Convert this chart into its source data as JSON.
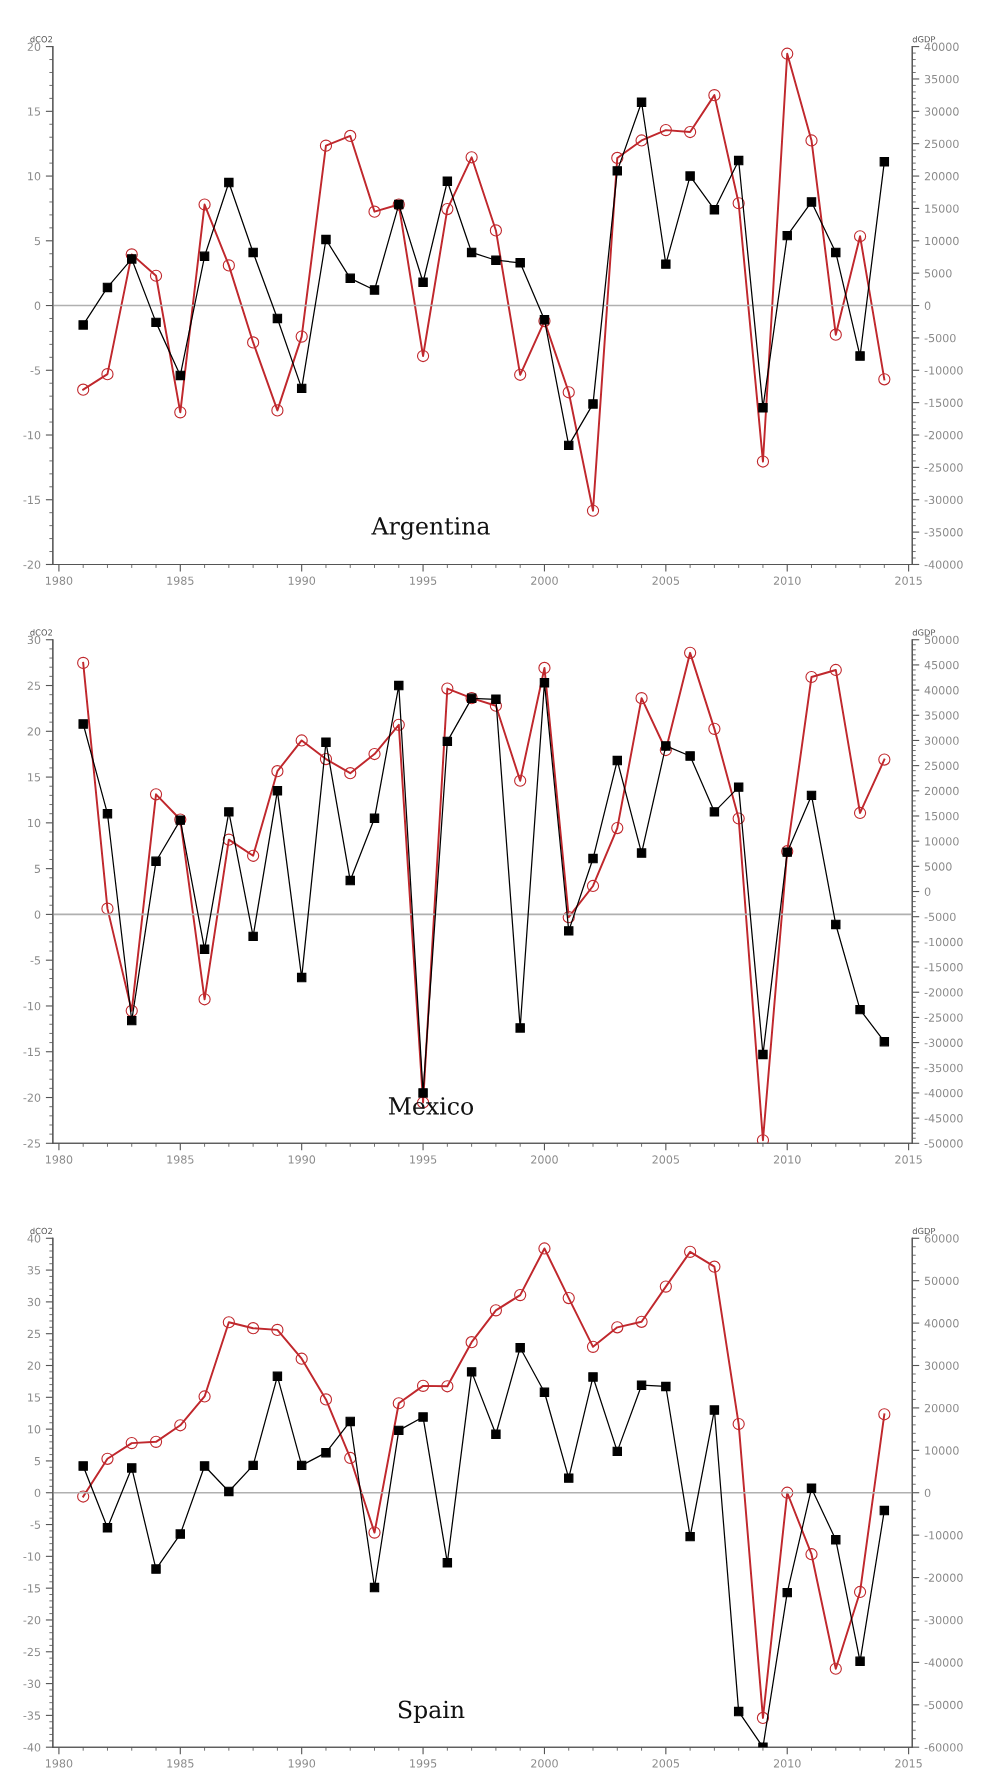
{
  "chart_data": [
    {
      "type": "line",
      "title": "Argentina",
      "ylabel": "dCO2",
      "y2label": "dGDP",
      "x": [
        1981,
        1982,
        1983,
        1984,
        1985,
        1986,
        1987,
        1988,
        1989,
        1990,
        1991,
        1992,
        1993,
        1994,
        1995,
        1996,
        1997,
        1998,
        1999,
        2000,
        2001,
        2002,
        2003,
        2004,
        2005,
        2006,
        2007,
        2008,
        2009,
        2010,
        2011,
        2012,
        2013,
        2014
      ],
      "series": [
        {
          "color": "#000000",
          "marker": "square",
          "values": [
            -1.5,
            1.4,
            3.6,
            -1.3,
            -5.4,
            3.8,
            9.5,
            4.1,
            -1.0,
            -6.4,
            5.1,
            2.1,
            1.2,
            7.8,
            1.8,
            9.6,
            4.1,
            3.5,
            3.3,
            -1.1,
            -10.8,
            -7.6,
            10.4,
            15.7,
            3.2,
            10.0,
            7.4,
            11.2,
            -7.9,
            5.4,
            8.0,
            4.1,
            -3.9,
            11.1
          ]
        },
        {
          "color": "#c0282d",
          "marker": "circle",
          "axis": "y2",
          "values": [
            -13000,
            -10600,
            7900,
            4600,
            -16500,
            15600,
            6200,
            -5700,
            -16200,
            -4800,
            24700,
            26200,
            14500,
            15600,
            -7800,
            14900,
            22900,
            11600,
            -10700,
            -2400,
            -13400,
            -31700,
            22800,
            25500,
            27100,
            26800,
            32500,
            15800,
            -24100,
            38900,
            25500,
            -4500,
            10700,
            -11400
          ]
        }
      ],
      "xlim": [
        1979.75,
        2015.15
      ],
      "xticks": [
        1980,
        1985,
        1990,
        1995,
        2000,
        2005,
        2010,
        2015
      ],
      "ylim": [
        -20,
        20
      ],
      "yticks": [
        -20,
        -15,
        -10,
        -5,
        0,
        5,
        10,
        15,
        20
      ],
      "y2lim": [
        -40000,
        40000
      ],
      "y2ticks": [
        -40000,
        -35000,
        -30000,
        -25000,
        -20000,
        -15000,
        -10000,
        -5000,
        0,
        5000,
        10000,
        15000,
        20000,
        25000,
        30000,
        35000,
        40000
      ],
      "ref_lines": [
        {
          "axis": "y",
          "value": 0,
          "color": "#b0b0b0"
        }
      ],
      "grid": false,
      "legend": false
    },
    {
      "type": "line",
      "title": "Mexico",
      "ylabel": "dCO2",
      "y2label": "dGDP",
      "x": [
        1981,
        1982,
        1983,
        1984,
        1985,
        1986,
        1987,
        1988,
        1989,
        1990,
        1991,
        1992,
        1993,
        1994,
        1995,
        1996,
        1997,
        1998,
        1999,
        2000,
        2001,
        2002,
        2003,
        2004,
        2005,
        2006,
        2007,
        2008,
        2009,
        2010,
        2011,
        2012,
        2013,
        2014
      ],
      "series": [
        {
          "color": "#000000",
          "marker": "square",
          "values": [
            20.8,
            11.0,
            -11.6,
            5.8,
            10.3,
            -3.8,
            11.2,
            -2.4,
            13.5,
            -6.9,
            18.8,
            3.7,
            10.5,
            25.0,
            -19.5,
            18.9,
            23.6,
            23.5,
            -12.4,
            25.3,
            -1.8,
            6.1,
            16.8,
            6.7,
            18.4,
            17.3,
            11.2,
            13.9,
            -15.3,
            6.8,
            13.0,
            -1.1,
            -10.4,
            -13.9
          ]
        },
        {
          "color": "#c0282d",
          "marker": "circle",
          "axis": "y2",
          "values": [
            45400,
            -3400,
            -23700,
            19300,
            14300,
            -21400,
            10300,
            7100,
            23900,
            30000,
            26300,
            23500,
            27300,
            33100,
            -41900,
            40300,
            38400,
            36900,
            22000,
            44400,
            -5100,
            1100,
            12600,
            38400,
            28100,
            47400,
            32300,
            14500,
            -49400,
            8000,
            42600,
            44000,
            15600,
            26200
          ]
        }
      ],
      "xlim": [
        1979.75,
        2015.15
      ],
      "xticks": [
        1980,
        1985,
        1990,
        1995,
        2000,
        2005,
        2010,
        2015
      ],
      "ylim": [
        -25,
        30
      ],
      "yticks": [
        -25,
        -20,
        -15,
        -10,
        -5,
        0,
        5,
        10,
        15,
        20,
        25,
        30
      ],
      "y2lim": [
        -50000,
        50000
      ],
      "y2ticks": [
        -50000,
        -45000,
        -40000,
        -35000,
        -30000,
        -25000,
        -20000,
        -15000,
        -10000,
        -5000,
        0,
        5000,
        10000,
        15000,
        20000,
        25000,
        30000,
        35000,
        40000,
        45000,
        50000
      ],
      "ref_lines": [
        {
          "axis": "y",
          "value": 0,
          "color": "#b0b0b0"
        }
      ],
      "grid": false,
      "legend": false
    },
    {
      "type": "line",
      "title": "Spain",
      "ylabel": "dCO2",
      "y2label": "dGDP",
      "x": [
        1981,
        1982,
        1983,
        1984,
        1985,
        1986,
        1987,
        1988,
        1989,
        1990,
        1991,
        1992,
        1993,
        1994,
        1995,
        1996,
        1997,
        1998,
        1999,
        2000,
        2001,
        2002,
        2003,
        2004,
        2005,
        2006,
        2007,
        2008,
        2009,
        2010,
        2011,
        2012,
        2013,
        2014
      ],
      "series": [
        {
          "color": "#000000",
          "marker": "square",
          "values": [
            4.2,
            -5.5,
            3.9,
            -12.0,
            -6.5,
            4.2,
            0.2,
            4.3,
            18.3,
            4.3,
            6.3,
            11.2,
            -14.9,
            9.8,
            11.9,
            -11.0,
            19.0,
            9.2,
            22.8,
            15.8,
            2.3,
            18.2,
            6.5,
            16.9,
            16.7,
            -6.9,
            13.0,
            -34.4,
            -40.0,
            -15.7,
            0.7,
            -7.4,
            -26.5,
            -2.8
          ]
        },
        {
          "color": "#c0282d",
          "marker": "circle",
          "axis": "y2",
          "values": [
            -900,
            8000,
            11700,
            12000,
            15900,
            22700,
            40200,
            38800,
            38400,
            31600,
            22000,
            8200,
            -9400,
            21100,
            25200,
            25100,
            35500,
            43000,
            46600,
            57600,
            45900,
            34400,
            39000,
            40300,
            48600,
            56800,
            53300,
            16200,
            -53100,
            0,
            -14500,
            -41500,
            -23400,
            18500
          ]
        }
      ],
      "xlim": [
        1979.75,
        2015.15
      ],
      "xticks": [
        1980,
        1985,
        1990,
        1995,
        2000,
        2005,
        2010,
        2015
      ],
      "ylim": [
        -40,
        40
      ],
      "yticks": [
        -40,
        -35,
        -30,
        -25,
        -20,
        -15,
        -10,
        -5,
        0,
        5,
        10,
        15,
        20,
        25,
        30,
        35,
        40
      ],
      "y2lim": [
        -60000,
        60000
      ],
      "y2ticks": [
        -60000,
        -50000,
        -40000,
        -30000,
        -20000,
        -10000,
        0,
        10000,
        20000,
        30000,
        40000,
        50000,
        60000
      ],
      "ref_lines": [
        {
          "axis": "y",
          "value": 0,
          "color": "#b0b0b0"
        }
      ],
      "grid": false,
      "legend": false
    }
  ]
}
